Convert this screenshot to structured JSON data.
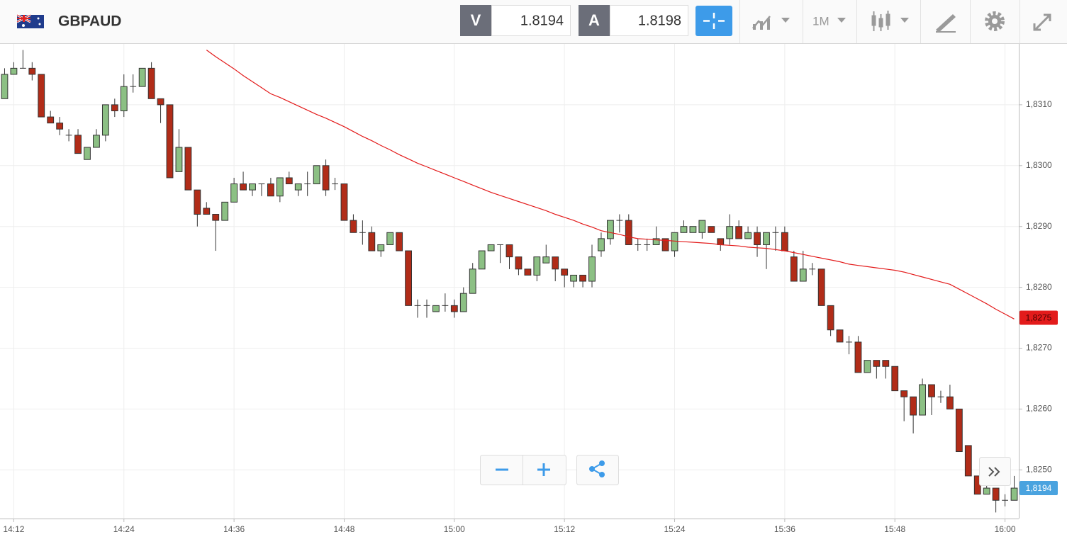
{
  "header": {
    "symbol": "GBPAUD",
    "sell": {
      "label": "V",
      "price": "1.8194"
    },
    "buy": {
      "label": "A",
      "price": "1.8198"
    },
    "timeframe": "1M"
  },
  "chart_data": {
    "type": "candlestick",
    "categories": [
      null,
      "14:12",
      null,
      null,
      null,
      null,
      null,
      null,
      null,
      null,
      null,
      null,
      null,
      "14:24",
      null,
      null,
      null,
      null,
      null,
      null,
      null,
      null,
      null,
      null,
      null,
      "14:36",
      null,
      null,
      null,
      null,
      null,
      null,
      null,
      null,
      null,
      null,
      null,
      "14:48",
      null,
      null,
      null,
      null,
      null,
      null,
      null,
      null,
      null,
      null,
      null,
      "15:00",
      null,
      null,
      null,
      null,
      null,
      null,
      null,
      null,
      null,
      null,
      null,
      "15:12",
      null,
      null,
      null,
      null,
      null,
      null,
      null,
      null,
      null,
      null,
      null,
      "15:24",
      null,
      null,
      null,
      null,
      null,
      null,
      null,
      null,
      null,
      null,
      null,
      "15:36",
      null,
      null,
      null,
      null,
      null,
      null,
      null,
      null,
      null,
      null,
      null,
      "15:48",
      null,
      null,
      null,
      null,
      null,
      null,
      null,
      null,
      null,
      null,
      null,
      "16:00",
      null
    ],
    "ohlc": [
      [
        1.8311,
        1.8316,
        1.8311,
        1.8315
      ],
      [
        1.8315,
        1.8317,
        1.8315,
        1.8316
      ],
      [
        1.8316,
        1.8319,
        1.8316,
        1.8316
      ],
      [
        1.8316,
        1.8317,
        1.8314,
        1.8315
      ],
      [
        1.8315,
        1.8315,
        1.8308,
        1.8308
      ],
      [
        1.8308,
        1.8309,
        1.8307,
        1.8307
      ],
      [
        1.8307,
        1.8308,
        1.8305,
        1.8306
      ],
      [
        1.8305,
        1.8306,
        1.8304,
        1.8305
      ],
      [
        1.8305,
        1.8306,
        1.8302,
        1.8302
      ],
      [
        1.8301,
        1.8303,
        1.8301,
        1.8303
      ],
      [
        1.8303,
        1.8306,
        1.8303,
        1.8305
      ],
      [
        1.8305,
        1.831,
        1.8304,
        1.831
      ],
      [
        1.831,
        1.8311,
        1.8308,
        1.8309
      ],
      [
        1.8309,
        1.8315,
        1.8308,
        1.8313
      ],
      [
        1.8313,
        1.8315,
        1.8312,
        1.8313
      ],
      [
        1.8313,
        1.8316,
        1.8313,
        1.8316
      ],
      [
        1.8316,
        1.8317,
        1.8311,
        1.8311
      ],
      [
        1.8311,
        1.8311,
        1.8307,
        1.831
      ],
      [
        1.831,
        1.831,
        1.8298,
        1.8298
      ],
      [
        1.8299,
        1.8306,
        1.8299,
        1.8303
      ],
      [
        1.8303,
        1.8303,
        1.8296,
        1.8296
      ],
      [
        1.8296,
        1.8296,
        1.829,
        1.8292
      ],
      [
        1.8293,
        1.8294,
        1.8292,
        1.8292
      ],
      [
        1.8292,
        1.8292,
        1.8286,
        1.8291
      ],
      [
        1.8291,
        1.8294,
        1.8291,
        1.8294
      ],
      [
        1.8294,
        1.8298,
        1.8294,
        1.8297
      ],
      [
        1.8297,
        1.8299,
        1.8296,
        1.8296
      ],
      [
        1.8296,
        1.8297,
        1.8295,
        1.8297
      ],
      [
        1.8297,
        1.8297,
        1.8295,
        1.8297
      ],
      [
        1.8297,
        1.8298,
        1.8295,
        1.8295
      ],
      [
        1.8295,
        1.8298,
        1.8294,
        1.8298
      ],
      [
        1.8298,
        1.8299,
        1.8297,
        1.8297
      ],
      [
        1.8296,
        1.8297,
        1.8295,
        1.8297
      ],
      [
        1.8297,
        1.8299,
        1.8295,
        1.8297
      ],
      [
        1.8297,
        1.83,
        1.8297,
        1.83
      ],
      [
        1.83,
        1.8301,
        1.8295,
        1.8296
      ],
      [
        1.8297,
        1.8298,
        1.8296,
        1.8297
      ],
      [
        1.8297,
        1.8297,
        1.8291,
        1.8291
      ],
      [
        1.8291,
        1.8292,
        1.8289,
        1.8289
      ],
      [
        1.8289,
        1.8291,
        1.8287,
        1.8289
      ],
      [
        1.8289,
        1.829,
        1.8286,
        1.8286
      ],
      [
        1.8286,
        1.8287,
        1.8285,
        1.8287
      ],
      [
        1.8287,
        1.8289,
        1.8287,
        1.8289
      ],
      [
        1.8289,
        1.8289,
        1.8286,
        1.8286
      ],
      [
        1.8286,
        1.8286,
        1.8277,
        1.8277
      ],
      [
        1.8277,
        1.8278,
        1.8275,
        1.8277
      ],
      [
        1.8277,
        1.8278,
        1.8275,
        1.8277
      ],
      [
        1.8276,
        1.8277,
        1.8276,
        1.8277
      ],
      [
        1.8277,
        1.8279,
        1.8276,
        1.8277
      ],
      [
        1.8277,
        1.8278,
        1.8275,
        1.8276
      ],
      [
        1.8276,
        1.828,
        1.8276,
        1.8279
      ],
      [
        1.8279,
        1.8284,
        1.8279,
        1.8283
      ],
      [
        1.8283,
        1.8286,
        1.8283,
        1.8286
      ],
      [
        1.8286,
        1.8287,
        1.8286,
        1.8287
      ],
      [
        1.8287,
        1.8287,
        1.8284,
        1.8287
      ],
      [
        1.8287,
        1.8287,
        1.8283,
        1.8285
      ],
      [
        1.8285,
        1.8285,
        1.8282,
        1.8283
      ],
      [
        1.8283,
        1.8283,
        1.8282,
        1.8282
      ],
      [
        1.8282,
        1.8285,
        1.8281,
        1.8285
      ],
      [
        1.8284,
        1.8287,
        1.8284,
        1.8285
      ],
      [
        1.8285,
        1.8285,
        1.8281,
        1.8283
      ],
      [
        1.8283,
        1.8283,
        1.828,
        1.8282
      ],
      [
        1.8281,
        1.8282,
        1.828,
        1.8282
      ],
      [
        1.8282,
        1.8282,
        1.828,
        1.8281
      ],
      [
        1.8281,
        1.8287,
        1.828,
        1.8285
      ],
      [
        1.8286,
        1.8289,
        1.8285,
        1.8288
      ],
      [
        1.8288,
        1.8291,
        1.8287,
        1.8291
      ],
      [
        1.8291,
        1.8292,
        1.8289,
        1.8291
      ],
      [
        1.8291,
        1.8292,
        1.8287,
        1.8287
      ],
      [
        1.8287,
        1.8288,
        1.8286,
        1.8287
      ],
      [
        1.8287,
        1.8288,
        1.8286,
        1.8287
      ],
      [
        1.8287,
        1.829,
        1.8287,
        1.8288
      ],
      [
        1.8288,
        1.8288,
        1.8286,
        1.8286
      ],
      [
        1.8286,
        1.8289,
        1.8285,
        1.8289
      ],
      [
        1.8289,
        1.8291,
        1.8289,
        1.829
      ],
      [
        1.8289,
        1.829,
        1.8289,
        1.829
      ],
      [
        1.8289,
        1.8291,
        1.8288,
        1.8291
      ],
      [
        1.829,
        1.829,
        1.8289,
        1.8289
      ],
      [
        1.8288,
        1.8288,
        1.8286,
        1.8287
      ],
      [
        1.8288,
        1.8292,
        1.8287,
        1.829
      ],
      [
        1.829,
        1.8291,
        1.8288,
        1.8288
      ],
      [
        1.8288,
        1.829,
        1.8288,
        1.8289
      ],
      [
        1.8289,
        1.829,
        1.8285,
        1.8287
      ],
      [
        1.8287,
        1.8289,
        1.8283,
        1.8289
      ],
      [
        1.8289,
        1.829,
        1.8286,
        1.8289
      ],
      [
        1.8289,
        1.829,
        1.8286,
        1.8286
      ],
      [
        1.8285,
        1.8286,
        1.8281,
        1.8281
      ],
      [
        1.8281,
        1.8286,
        1.8281,
        1.8283
      ],
      [
        1.8283,
        1.8284,
        1.8282,
        1.8283
      ],
      [
        1.8283,
        1.8283,
        1.8277,
        1.8277
      ],
      [
        1.8277,
        1.8277,
        1.8272,
        1.8273
      ],
      [
        1.8273,
        1.8273,
        1.8271,
        1.8271
      ],
      [
        1.8271,
        1.8272,
        1.8269,
        1.8271
      ],
      [
        1.8271,
        1.8272,
        1.8266,
        1.8266
      ],
      [
        1.8266,
        1.8268,
        1.8266,
        1.8268
      ],
      [
        1.8268,
        1.8268,
        1.8265,
        1.8267
      ],
      [
        1.8268,
        1.8268,
        1.8265,
        1.8267
      ],
      [
        1.8267,
        1.8267,
        1.8263,
        1.8263
      ],
      [
        1.8263,
        1.8263,
        1.8258,
        1.8262
      ],
      [
        1.8262,
        1.8262,
        1.8256,
        1.8259
      ],
      [
        1.8259,
        1.8265,
        1.8259,
        1.8264
      ],
      [
        1.8264,
        1.8264,
        1.8259,
        1.8262
      ],
      [
        1.8262,
        1.8263,
        1.8261,
        1.8262
      ],
      [
        1.8262,
        1.8264,
        1.826,
        1.826
      ],
      [
        1.826,
        1.826,
        1.8253,
        1.8253
      ],
      [
        1.8254,
        1.8254,
        1.8249,
        1.8249
      ],
      [
        1.8249,
        1.8249,
        1.8246,
        1.8246
      ],
      [
        1.8246,
        1.8252,
        1.8246,
        1.8247
      ],
      [
        1.8247,
        1.8247,
        1.8243,
        1.8245
      ],
      [
        1.8245,
        1.8246,
        1.8244,
        1.8245
      ],
      [
        1.8245,
        1.8249,
        1.8245,
        1.8247
      ]
    ],
    "up_color": "#8cc084",
    "down_color": "#b12c18",
    "ma": {
      "color": "#e31b1b",
      "values": [
        null,
        null,
        null,
        null,
        null,
        null,
        null,
        null,
        null,
        null,
        null,
        null,
        null,
        null,
        null,
        null,
        null,
        null,
        null,
        null,
        null,
        null,
        1.8319,
        1.83179,
        1.83169,
        1.83159,
        1.83148,
        1.83138,
        1.83128,
        1.83118,
        1.83112,
        1.83105,
        1.83098,
        1.83091,
        1.83084,
        1.83078,
        1.83071,
        1.83064,
        1.83056,
        1.83048,
        1.83041,
        1.83033,
        1.83026,
        1.83018,
        1.83011,
        1.83004,
        1.82998,
        1.82992,
        1.82986,
        1.8298,
        1.82974,
        1.82968,
        1.82962,
        1.82956,
        1.82951,
        1.82946,
        1.82941,
        1.82936,
        1.82931,
        1.82926,
        1.8292,
        1.82915,
        1.8291,
        1.82904,
        1.82899,
        1.82893,
        1.8289,
        1.82887,
        1.82883,
        1.8288,
        1.82879,
        1.82878,
        1.82877,
        1.82876,
        1.82875,
        1.82874,
        1.82873,
        1.82872,
        1.8287,
        1.82869,
        1.82868,
        1.82866,
        1.82865,
        1.82864,
        1.82862,
        1.8286,
        1.82857,
        1.82854,
        1.82851,
        1.82848,
        1.82845,
        1.82842,
        1.82838,
        1.82836,
        1.82834,
        1.82832,
        1.8283,
        1.82828,
        1.82825,
        1.82821,
        1.82817,
        1.82813,
        1.82809,
        1.82805,
        1.82797,
        1.82789,
        1.82781,
        1.82773,
        1.82764,
        1.82756,
        1.82748
      ]
    },
    "ma_tag": {
      "value": 1.8275,
      "label": "1,8275"
    },
    "price_tag": "1,8194",
    "ylim": [
      1.8242,
      1.832
    ],
    "yticks": [
      {
        "value": 1.825,
        "label": "1,8250"
      },
      {
        "value": 1.826,
        "label": "1,8260"
      },
      {
        "value": 1.827,
        "label": "1,8270"
      },
      {
        "value": 1.828,
        "label": "1,8280"
      },
      {
        "value": 1.829,
        "label": "1,8290"
      },
      {
        "value": 1.83,
        "label": "1,8300"
      },
      {
        "value": 1.831,
        "label": "1,8310"
      }
    ],
    "grid": true
  }
}
